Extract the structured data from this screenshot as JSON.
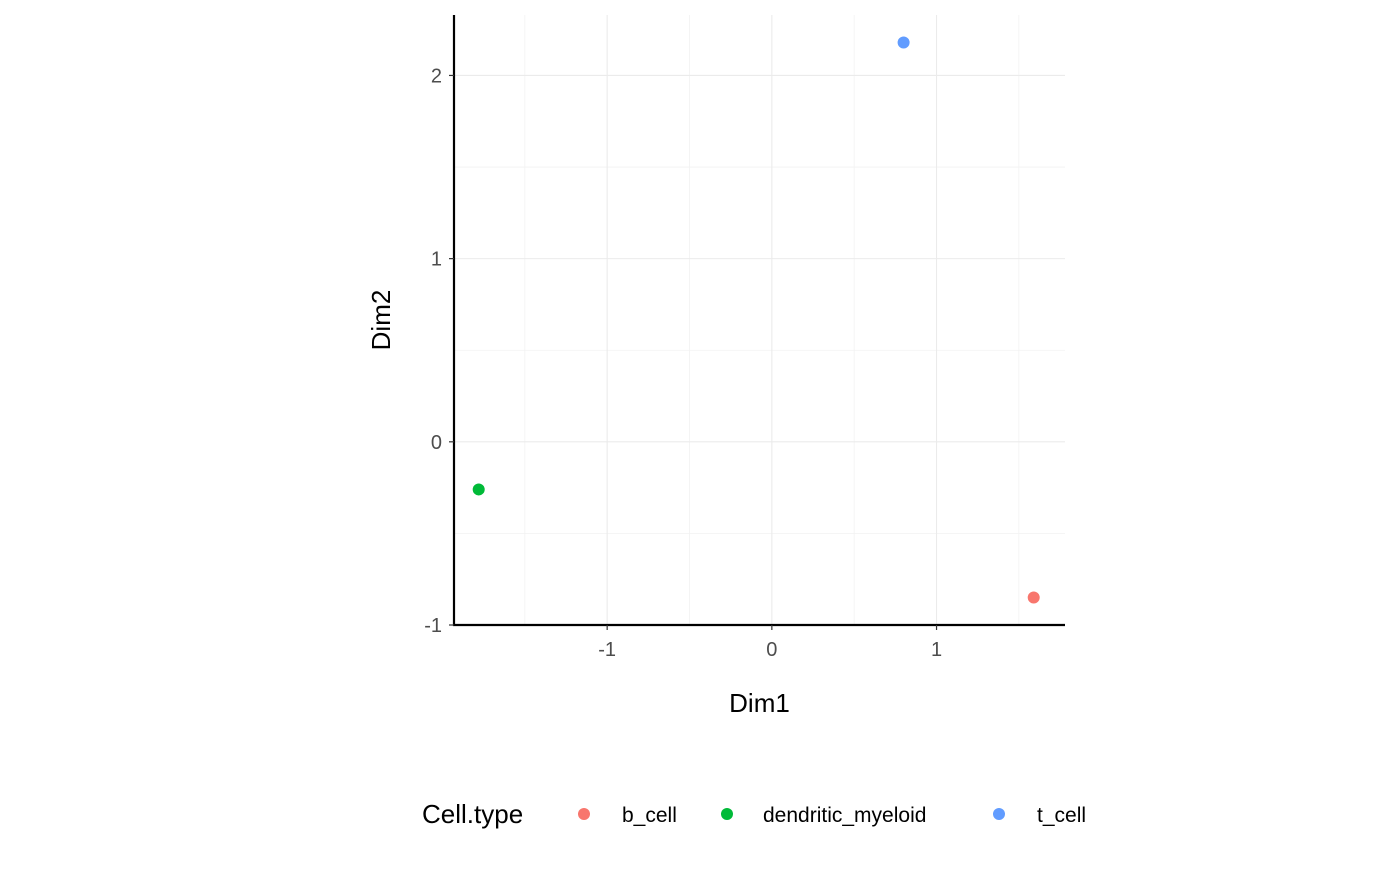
{
  "chart_data": {
    "type": "scatter",
    "title": "",
    "xlabel": "Dim1",
    "ylabel": "Dim2",
    "xlim": [
      -1.93,
      1.78
    ],
    "ylim": [
      -1.0,
      2.33
    ],
    "x_ticks": [
      -1,
      0,
      1
    ],
    "x_tick_labels": [
      "-1",
      "0",
      "1"
    ],
    "y_ticks": [
      -1,
      0,
      1,
      2
    ],
    "y_tick_labels": [
      "-1",
      "0",
      "1",
      "2"
    ],
    "x_minor_ticks": [
      -1.5,
      -0.5,
      0.5,
      1.5
    ],
    "y_minor_ticks": [
      -0.5,
      0.5,
      1.5
    ],
    "grid": true,
    "legend": {
      "title": "Cell.type",
      "placement": "bottom"
    },
    "series": [
      {
        "name": "b_cell",
        "color": "#F8766D",
        "points": [
          {
            "x": 1.59,
            "y": -0.85
          }
        ]
      },
      {
        "name": "dendritic_myeloid",
        "color": "#00BA38",
        "points": [
          {
            "x": -1.78,
            "y": -0.26
          }
        ]
      },
      {
        "name": "t_cell",
        "color": "#619CFF",
        "points": [
          {
            "x": 0.8,
            "y": 2.18
          }
        ]
      }
    ]
  }
}
